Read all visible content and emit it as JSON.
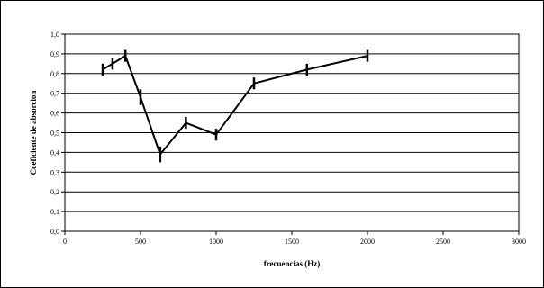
{
  "chart_data": {
    "type": "line",
    "title": "",
    "xlabel": "frecuencias (Hz)",
    "ylabel": "Coeficiente de absorcion",
    "xlim": [
      0,
      3000
    ],
    "ylim": [
      0,
      1.0
    ],
    "x_ticks": [
      "0",
      "500",
      "1000",
      "1500",
      "2000",
      "2500",
      "3000"
    ],
    "y_ticks": [
      "0,0",
      "0,1",
      "0,2",
      "0,3",
      "0,4",
      "0,5",
      "0,6",
      "0,7",
      "0,8",
      "0,9",
      "1,0"
    ],
    "grid": "horizontal",
    "legend": "none",
    "series": [
      {
        "color": "#000000",
        "x": [
          250,
          315,
          400,
          500,
          630,
          800,
          1000,
          1250,
          1600,
          2000
        ],
        "values": [
          0.82,
          0.85,
          0.89,
          0.68,
          0.39,
          0.55,
          0.49,
          0.75,
          0.82,
          0.89
        ],
        "error": [
          0.03,
          0.03,
          0.03,
          0.04,
          0.04,
          0.03,
          0.03,
          0.03,
          0.03,
          0.03
        ]
      }
    ]
  }
}
